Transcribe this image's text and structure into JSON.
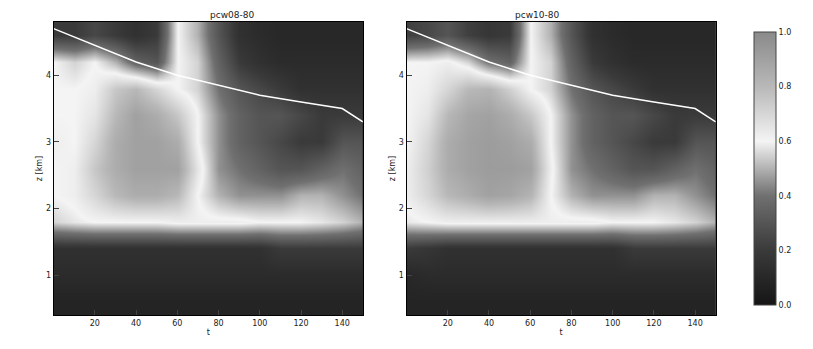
{
  "chart_data": [
    {
      "type": "heatmap",
      "title": "pcw08-80",
      "xlabel": "t",
      "ylabel": "z [km]",
      "x": [
        0,
        10,
        20,
        30,
        40,
        50,
        60,
        70,
        80,
        90,
        100,
        110,
        120,
        130,
        140,
        150
      ],
      "y": [
        0.6,
        1.0,
        1.4,
        1.8,
        2.2,
        2.6,
        3.0,
        3.4,
        3.8,
        4.2,
        4.6
      ],
      "z": [
        [
          0.08,
          0.08,
          0.08,
          0.08,
          0.08,
          0.08,
          0.08,
          0.08,
          0.08,
          0.08,
          0.08,
          0.08,
          0.08,
          0.08,
          0.08,
          0.08
        ],
        [
          0.12,
          0.12,
          0.12,
          0.12,
          0.12,
          0.12,
          0.12,
          0.12,
          0.12,
          0.12,
          0.12,
          0.12,
          0.12,
          0.12,
          0.12,
          0.12
        ],
        [
          0.15,
          0.15,
          0.15,
          0.15,
          0.15,
          0.15,
          0.15,
          0.15,
          0.15,
          0.15,
          0.15,
          0.2,
          0.2,
          0.2,
          0.2,
          0.2
        ],
        [
          0.55,
          0.58,
          0.6,
          0.6,
          0.6,
          0.6,
          0.62,
          0.62,
          0.62,
          0.62,
          0.6,
          0.6,
          0.6,
          0.58,
          0.55,
          0.5
        ],
        [
          0.6,
          0.62,
          0.7,
          0.8,
          0.85,
          0.85,
          0.8,
          0.6,
          0.5,
          0.45,
          0.45,
          0.45,
          0.5,
          0.5,
          0.45,
          0.4
        ],
        [
          0.6,
          0.62,
          0.75,
          0.85,
          0.9,
          0.9,
          0.9,
          0.65,
          0.45,
          0.4,
          0.35,
          0.3,
          0.3,
          0.35,
          0.4,
          0.35
        ],
        [
          0.62,
          0.6,
          0.7,
          0.85,
          0.9,
          0.9,
          0.85,
          0.6,
          0.45,
          0.35,
          0.3,
          0.25,
          0.2,
          0.2,
          0.3,
          0.3
        ],
        [
          0.6,
          0.6,
          0.65,
          0.8,
          0.9,
          0.85,
          0.75,
          0.6,
          0.45,
          0.35,
          0.3,
          0.3,
          0.25,
          0.2,
          0.2,
          0.2
        ],
        [
          0.6,
          0.6,
          0.62,
          0.75,
          0.8,
          0.7,
          0.6,
          0.55,
          0.4,
          0.3,
          0.25,
          0.2,
          0.15,
          0.15,
          0.15,
          0.15
        ],
        [
          0.6,
          0.55,
          0.6,
          0.5,
          0.35,
          0.3,
          0.6,
          0.55,
          0.35,
          0.2,
          0.15,
          0.12,
          0.12,
          0.12,
          0.12,
          0.12
        ],
        [
          0.2,
          0.2,
          0.25,
          0.2,
          0.15,
          0.2,
          0.6,
          0.5,
          0.3,
          0.15,
          0.12,
          0.1,
          0.1,
          0.1,
          0.1,
          0.1
        ]
      ],
      "zlim": [
        0,
        1
      ],
      "zticks": [
        {
          "value": 0,
          "label": "0.0"
        },
        {
          "value": 0.2,
          "label": "0.2"
        },
        {
          "value": 0.4,
          "label": "0.4"
        },
        {
          "value": 0.6,
          "label": "0.6"
        },
        {
          "value": 0.8,
          "label": "0.8"
        },
        {
          "value": 1,
          "label": "1.0"
        }
      ],
      "xlim": [
        0,
        150
      ],
      "ylim": [
        0.4,
        4.8
      ],
      "xticks": [
        20,
        40,
        60,
        80,
        100,
        120,
        140
      ],
      "yticks": [
        1,
        2,
        3,
        4
      ],
      "series": [
        {
          "type": "line",
          "color": "#ffffff",
          "x": [
            0,
            20,
            40,
            60,
            80,
            100,
            120,
            140,
            150
          ],
          "y": [
            4.7,
            4.45,
            4.2,
            4.0,
            3.85,
            3.7,
            3.6,
            3.5,
            3.3
          ]
        }
      ]
    },
    {
      "type": "heatmap",
      "title": "pcw10-80",
      "xlabel": "t",
      "ylabel": "z [km]",
      "x": [
        0,
        10,
        20,
        30,
        40,
        50,
        60,
        70,
        80,
        90,
        100,
        110,
        120,
        130,
        140,
        150
      ],
      "y": [
        0.6,
        1.0,
        1.4,
        1.8,
        2.2,
        2.6,
        3.0,
        3.4,
        3.8,
        4.2,
        4.6
      ],
      "z": [
        [
          0.08,
          0.08,
          0.08,
          0.08,
          0.08,
          0.08,
          0.08,
          0.08,
          0.08,
          0.08,
          0.08,
          0.08,
          0.08,
          0.08,
          0.08,
          0.08
        ],
        [
          0.1,
          0.12,
          0.12,
          0.12,
          0.12,
          0.12,
          0.12,
          0.12,
          0.12,
          0.12,
          0.12,
          0.12,
          0.12,
          0.12,
          0.12,
          0.12
        ],
        [
          0.2,
          0.18,
          0.15,
          0.15,
          0.15,
          0.15,
          0.15,
          0.15,
          0.15,
          0.15,
          0.15,
          0.2,
          0.2,
          0.2,
          0.2,
          0.2
        ],
        [
          0.58,
          0.6,
          0.62,
          0.62,
          0.62,
          0.62,
          0.62,
          0.62,
          0.62,
          0.62,
          0.6,
          0.6,
          0.6,
          0.58,
          0.55,
          0.5
        ],
        [
          0.62,
          0.7,
          0.8,
          0.85,
          0.9,
          0.88,
          0.82,
          0.6,
          0.5,
          0.45,
          0.45,
          0.45,
          0.5,
          0.5,
          0.45,
          0.4
        ],
        [
          0.62,
          0.72,
          0.85,
          0.9,
          0.92,
          0.92,
          0.9,
          0.62,
          0.45,
          0.4,
          0.35,
          0.3,
          0.3,
          0.35,
          0.4,
          0.35
        ],
        [
          0.6,
          0.7,
          0.85,
          0.9,
          0.92,
          0.9,
          0.85,
          0.6,
          0.45,
          0.35,
          0.3,
          0.25,
          0.2,
          0.2,
          0.3,
          0.3
        ],
        [
          0.6,
          0.65,
          0.8,
          0.88,
          0.9,
          0.85,
          0.75,
          0.6,
          0.45,
          0.35,
          0.3,
          0.3,
          0.25,
          0.2,
          0.2,
          0.2
        ],
        [
          0.6,
          0.62,
          0.7,
          0.8,
          0.82,
          0.72,
          0.6,
          0.55,
          0.4,
          0.3,
          0.25,
          0.2,
          0.15,
          0.15,
          0.15,
          0.15
        ],
        [
          0.6,
          0.6,
          0.62,
          0.55,
          0.4,
          0.35,
          0.6,
          0.55,
          0.35,
          0.2,
          0.15,
          0.12,
          0.12,
          0.12,
          0.12,
          0.12
        ],
        [
          0.22,
          0.25,
          0.3,
          0.22,
          0.18,
          0.2,
          0.6,
          0.5,
          0.3,
          0.15,
          0.12,
          0.1,
          0.1,
          0.1,
          0.1,
          0.1
        ]
      ],
      "zlim": [
        0,
        1
      ],
      "zticks": [
        {
          "value": 0,
          "label": "0.0"
        },
        {
          "value": 0.2,
          "label": "0.2"
        },
        {
          "value": 0.4,
          "label": "0.4"
        },
        {
          "value": 0.6,
          "label": "0.6"
        },
        {
          "value": 0.8,
          "label": "0.8"
        },
        {
          "value": 1,
          "label": "1.0"
        }
      ],
      "xlim": [
        0,
        150
      ],
      "ylim": [
        0.4,
        4.8
      ],
      "xticks": [
        20,
        40,
        60,
        80,
        100,
        120,
        140
      ],
      "yticks": [
        1,
        2,
        3,
        4
      ],
      "series": [
        {
          "type": "line",
          "color": "#ffffff",
          "x": [
            0,
            20,
            40,
            60,
            80,
            100,
            120,
            140,
            150
          ],
          "y": [
            4.7,
            4.45,
            4.2,
            4.0,
            3.85,
            3.7,
            3.6,
            3.5,
            3.3
          ]
        }
      ]
    }
  ]
}
